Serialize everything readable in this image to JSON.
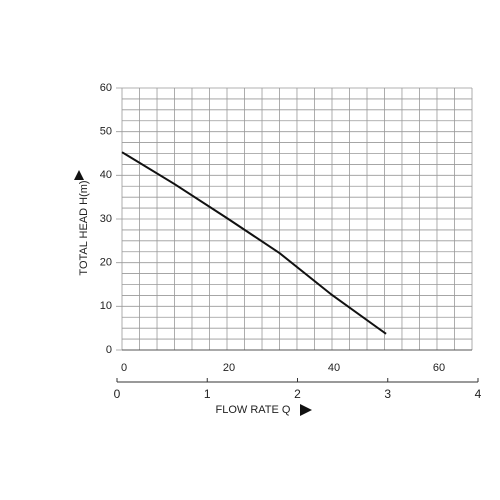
{
  "chart_data": {
    "type": "line",
    "ylabel": "TOTAL HEAD H(m)",
    "xlabel": "FLOW RATE Q",
    "xlim": [
      0,
      66.67
    ],
    "xticks": [
      0,
      20,
      40,
      60
    ],
    "minor_xticks": [
      3.33,
      6.67,
      10,
      13.33,
      16.67,
      23.33,
      26.67,
      30,
      33.33,
      36.67,
      43.33,
      46.67,
      50,
      53.33,
      56.67,
      63.33,
      66.67
    ],
    "ylim": [
      0,
      60
    ],
    "yticks": [
      0,
      10,
      20,
      30,
      40,
      50,
      60
    ],
    "minor_yticks": [
      2.5,
      5,
      7.5,
      12.5,
      15,
      17.5,
      22.5,
      25,
      27.5,
      32.5,
      35,
      37.5,
      42.5,
      45,
      47.5,
      52.5,
      55,
      57.5
    ],
    "x2lim": [
      0,
      4
    ],
    "x2ticks": [
      0,
      1,
      2,
      3,
      4
    ],
    "grid": true,
    "series": [
      {
        "color": "#111111",
        "x": [
          0,
          10,
          20,
          30,
          40,
          50.3
        ],
        "values": [
          45.3,
          38,
          30.2,
          22.2,
          12.6,
          3.7
        ]
      }
    ]
  }
}
